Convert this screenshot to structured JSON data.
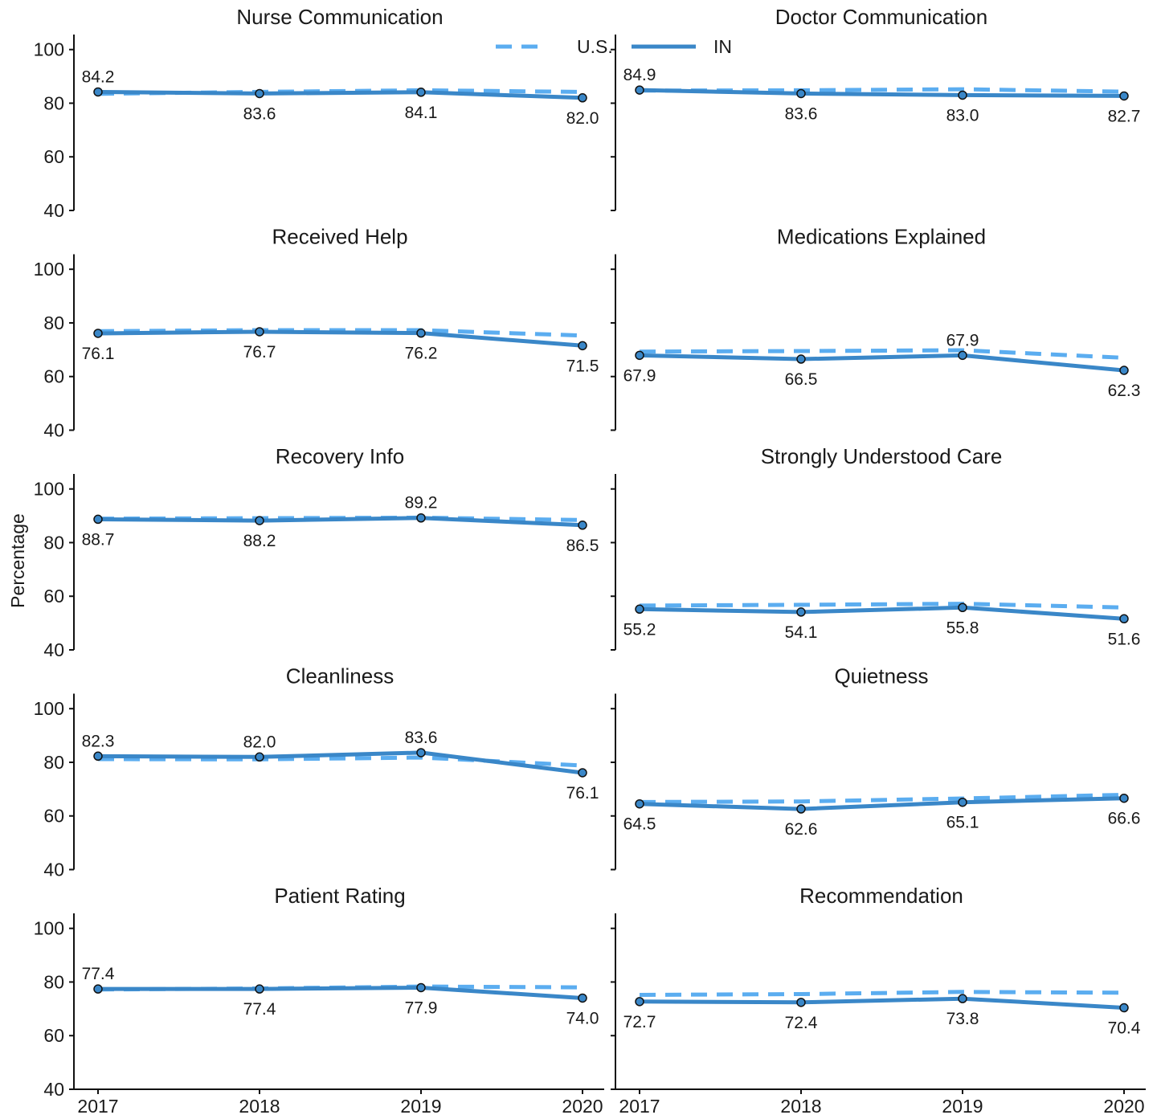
{
  "chart_data": {
    "type": "line",
    "ylabel": "Percentage",
    "ylim": [
      40,
      105
    ],
    "yticks": [
      40,
      60,
      80,
      100
    ],
    "x": [
      "2017",
      "2018",
      "2019",
      "2020"
    ],
    "legend": {
      "placement": "top-center",
      "entries": [
        {
          "name": "U.S.",
          "style": "dashed",
          "color": "#5BADF0"
        },
        {
          "name": "IN",
          "style": "solid",
          "color": "#3A87C8"
        }
      ]
    },
    "colors": {
      "us": "#5BADF0",
      "in": "#3A87C8",
      "marker_fill": "#3A87C8",
      "marker_edge": "#111111"
    },
    "panels": [
      {
        "title": "Nurse Communication",
        "in": [
          84.2,
          83.6,
          84.1,
          82.0
        ],
        "us": [
          83.5,
          84.2,
          84.8,
          84.2
        ],
        "label_pos": [
          "above",
          "below",
          "below",
          "below"
        ]
      },
      {
        "title": "Doctor Communication",
        "in": [
          84.9,
          83.6,
          83.0,
          82.7
        ],
        "us": [
          84.7,
          84.8,
          85.2,
          84.3
        ],
        "label_pos": [
          "above",
          "below",
          "below",
          "below"
        ]
      },
      {
        "title": "Received Help",
        "in": [
          76.1,
          76.7,
          76.2,
          71.5
        ],
        "us": [
          76.9,
          77.3,
          77.3,
          75.3
        ],
        "label_pos": [
          "below",
          "below",
          "below",
          "below"
        ]
      },
      {
        "title": "Medications Explained",
        "in": [
          67.9,
          66.5,
          67.9,
          62.3
        ],
        "us": [
          69.3,
          69.5,
          69.8,
          67.0
        ],
        "label_pos": [
          "below",
          "below",
          "above",
          "below"
        ]
      },
      {
        "title": "Recovery Info",
        "in": [
          88.7,
          88.2,
          89.2,
          86.5
        ],
        "us": [
          88.9,
          89.1,
          89.3,
          88.4
        ],
        "label_pos": [
          "below",
          "below",
          "above",
          "below"
        ]
      },
      {
        "title": "Strongly Understood Care",
        "in": [
          55.2,
          54.1,
          55.8,
          51.6
        ],
        "us": [
          56.5,
          56.8,
          57.2,
          55.8
        ],
        "label_pos": [
          "below",
          "below",
          "below",
          "below"
        ]
      },
      {
        "title": "Cleanliness",
        "in": [
          82.3,
          82.0,
          83.6,
          76.1
        ],
        "us": [
          81.2,
          81.1,
          81.8,
          78.8
        ],
        "label_pos": [
          "above",
          "above",
          "above",
          "below"
        ]
      },
      {
        "title": "Quietness",
        "in": [
          64.5,
          62.6,
          65.1,
          66.6
        ],
        "us": [
          65.2,
          65.4,
          66.5,
          67.9
        ],
        "label_pos": [
          "below",
          "below",
          "below",
          "below"
        ]
      },
      {
        "title": "Patient Rating",
        "in": [
          77.4,
          77.4,
          77.9,
          74.0
        ],
        "us": [
          77.2,
          77.6,
          78.3,
          78.0
        ],
        "label_pos": [
          "above",
          "below",
          "below",
          "below"
        ]
      },
      {
        "title": "Recommendation",
        "in": [
          72.7,
          72.4,
          73.8,
          70.4
        ],
        "us": [
          75.2,
          75.5,
          76.3,
          76.0
        ],
        "label_pos": [
          "below",
          "below",
          "below",
          "below"
        ]
      }
    ]
  }
}
